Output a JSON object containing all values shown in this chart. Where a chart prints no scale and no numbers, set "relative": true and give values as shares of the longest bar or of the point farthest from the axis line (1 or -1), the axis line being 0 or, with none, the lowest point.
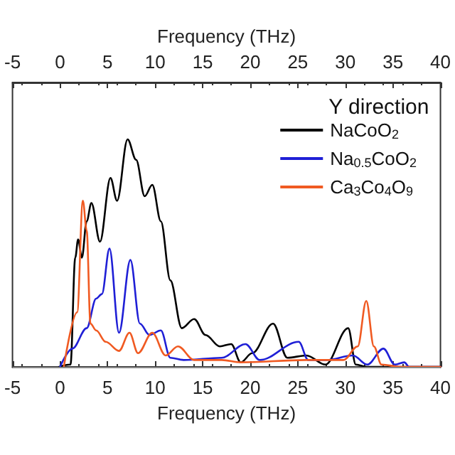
{
  "chart_data": {
    "type": "line",
    "relative": true,
    "annotations": [
      "Y direction"
    ],
    "xlabel": "Frequency (THz)",
    "x2label": "Frequency (THz)",
    "xlim": [
      -5,
      40
    ],
    "xticks": [
      -5,
      0,
      5,
      10,
      15,
      20,
      25,
      30,
      35,
      40
    ],
    "x2lim": [
      -5,
      40
    ],
    "x2ticks": [
      -5,
      0,
      5,
      10,
      15,
      20,
      25,
      30,
      35,
      40
    ],
    "legend": "top right",
    "grid": false,
    "marker": "none",
    "line_style": "solid",
    "ref_lines": [
      {
        "axis": "y",
        "value": 0,
        "color": "#888888"
      }
    ],
    "series": [
      {
        "name": "NaCoO$_{2}$",
        "color": "#000000",
        "x": [
          -0.1,
          1.1,
          1.6,
          1.9,
          2.3,
          2.8,
          3.3,
          4.2,
          5.3,
          6.0,
          7.1,
          8.0,
          8.9,
          9.7,
          10.6,
          11.6,
          12.8,
          14.1,
          15.3,
          16.8,
          18.0,
          19.0,
          20.2,
          22.4,
          23.9,
          25.9,
          27.9,
          30.3,
          31.1,
          32.3,
          40
        ],
        "values": [
          0,
          0.01,
          0.48,
          0.56,
          0.48,
          0.64,
          0.72,
          0.55,
          0.83,
          0.73,
          1,
          0.91,
          0.75,
          0.8,
          0.64,
          0.38,
          0.17,
          0.21,
          0.14,
          0.09,
          0.1,
          0.02,
          0.06,
          0.19,
          0.04,
          0.05,
          0.01,
          0.17,
          0.01,
          0,
          0
        ]
      },
      {
        "name": "Na$_{0.5}$CoO$_{2}$",
        "color": "#1f1fd6",
        "x": [
          0,
          1.3,
          2.8,
          3.8,
          4.4,
          5.2,
          6.2,
          7.4,
          8.4,
          9.4,
          10.6,
          11.6,
          13,
          17,
          19.5,
          21,
          25.1,
          26.1,
          28,
          30.8,
          32.3,
          34,
          35.2,
          36.2,
          36.7,
          40
        ],
        "values": [
          0,
          0.08,
          0.17,
          0.3,
          0.32,
          0.52,
          0.15,
          0.47,
          0.19,
          0.14,
          0.16,
          0.04,
          0.03,
          0.04,
          0.1,
          0.03,
          0.11,
          0.03,
          0.03,
          0.05,
          0.01,
          0.08,
          0.01,
          0.02,
          0,
          0
        ]
      },
      {
        "name": "Ca$_{3}$Co$_{4}$O$_{9}$",
        "color": "#f05a22",
        "x": [
          0.4,
          1.8,
          2.4,
          2.8,
          3.2,
          3.8,
          4.8,
          6.2,
          7.3,
          8.2,
          9.7,
          11.1,
          12.4,
          14.1,
          17,
          19,
          25.9,
          29.8,
          31.3,
          32.2,
          33,
          33.8,
          35.8,
          40
        ],
        "values": [
          0,
          0.24,
          0.73,
          0.6,
          0.19,
          0.16,
          0.11,
          0.07,
          0.15,
          0.06,
          0.15,
          0.05,
          0.09,
          0.03,
          0.03,
          0.02,
          0.03,
          0.03,
          0.09,
          0.29,
          0.09,
          0.01,
          0,
          0
        ]
      }
    ]
  }
}
